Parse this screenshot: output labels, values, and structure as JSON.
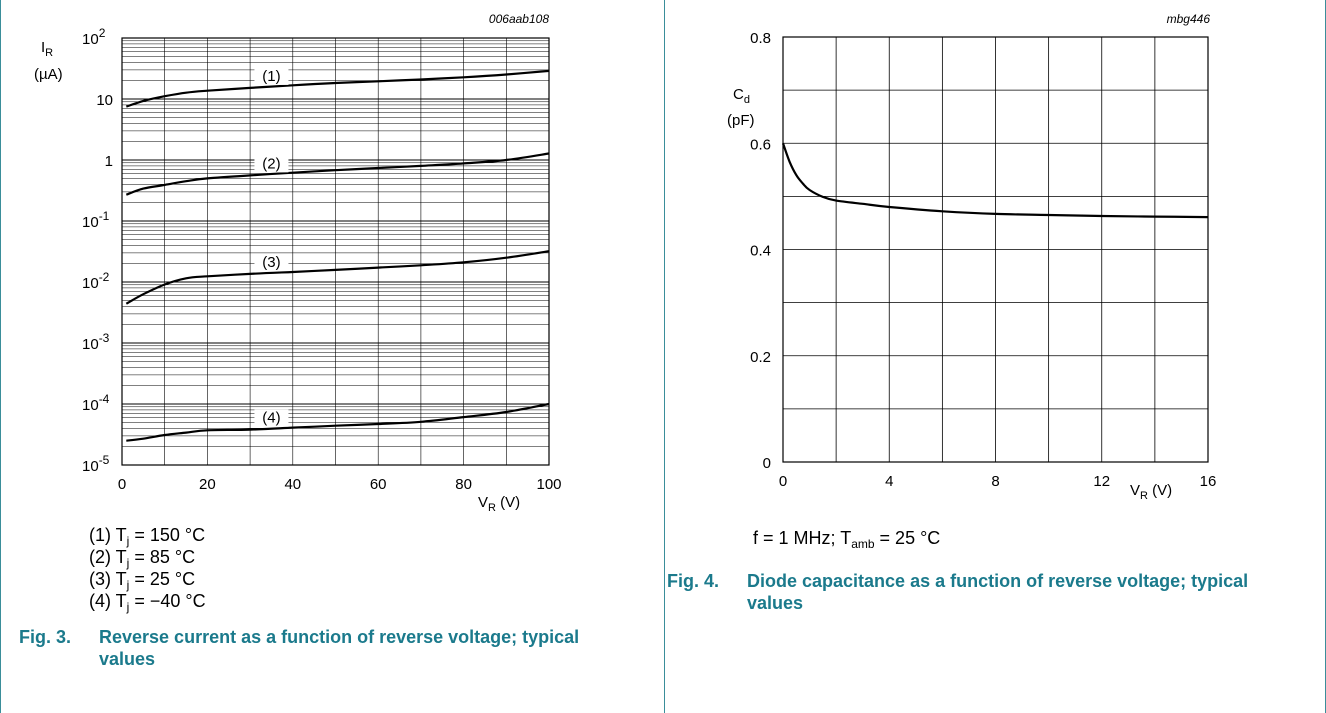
{
  "left": {
    "fig_id": "006aab108",
    "chart_data": {
      "type": "line",
      "x_label": "VR (V)",
      "y_label": "IR (µA)",
      "y_scale": "log",
      "xlim": [
        0,
        100
      ],
      "ylim": [
        1e-05,
        100
      ],
      "x_ticks": [
        "0",
        "20",
        "40",
        "60",
        "80",
        "100"
      ],
      "y_ticks": [
        "10^2",
        "10",
        "1",
        "10^-1",
        "10^-2",
        "10^-3",
        "10^-4",
        "10^-5"
      ],
      "grid": true,
      "series": [
        {
          "name": "(1)",
          "x": [
            1,
            5,
            10,
            15,
            20,
            30,
            40,
            50,
            60,
            70,
            80,
            90,
            100
          ],
          "y": [
            7.5,
            9.3,
            11.1,
            12.7,
            13.7,
            15.2,
            16.8,
            18.3,
            19.5,
            20.9,
            22.7,
            25.2,
            28.9
          ]
        },
        {
          "name": "(2)",
          "x": [
            1,
            5,
            10,
            15,
            20,
            30,
            40,
            50,
            60,
            70,
            80,
            90,
            100
          ],
          "y": [
            0.27,
            0.34,
            0.39,
            0.45,
            0.5,
            0.56,
            0.62,
            0.68,
            0.74,
            0.8,
            0.88,
            1.0,
            1.28
          ]
        },
        {
          "name": "(3)",
          "x": [
            1,
            5,
            10,
            15,
            20,
            30,
            40,
            50,
            60,
            70,
            80,
            90,
            100
          ],
          "y": [
            0.0044,
            0.0063,
            0.0091,
            0.0115,
            0.0124,
            0.0136,
            0.0146,
            0.0158,
            0.0172,
            0.0188,
            0.021,
            0.025,
            0.032
          ]
        },
        {
          "name": "(4)",
          "x": [
            1,
            5,
            10,
            15,
            20,
            30,
            40,
            50,
            60,
            70,
            80,
            90,
            100
          ],
          "y": [
            2.5e-05,
            2.7e-05,
            3.1e-05,
            3.4e-05,
            3.7e-05,
            3.8e-05,
            4.1e-05,
            4.4e-05,
            4.7e-05,
            5.1e-05,
            6.1e-05,
            7.4e-05,
            0.0001
          ]
        }
      ]
    },
    "legend": [
      {
        "prefix": "(1) T",
        "sub": "j",
        "suffix": " = 150 °C"
      },
      {
        "prefix": "(2) T",
        "sub": "j",
        "suffix": " = 85 °C"
      },
      {
        "prefix": "(3) T",
        "sub": "j",
        "suffix": " = 25 °C"
      },
      {
        "prefix": "(4) T",
        "sub": "j",
        "suffix": " = −40 °C"
      }
    ],
    "caption_num": "Fig. 3.",
    "caption_text": "Reverse current as a function of reverse voltage; typical values"
  },
  "right": {
    "fig_id": "mbg446",
    "chart_data": {
      "type": "line",
      "x_label": "VR (V)",
      "y_label": "Cd (pF)",
      "xlim": [
        0,
        16
      ],
      "ylim": [
        0,
        0.8
      ],
      "x_ticks": [
        "0",
        "4",
        "8",
        "12",
        "16"
      ],
      "y_ticks": [
        "0",
        "0.2",
        "0.4",
        "0.6",
        "0.8"
      ],
      "grid": true,
      "series": [
        {
          "x": [
            0,
            0.25,
            0.5,
            0.75,
            1,
            1.5,
            2,
            3,
            4,
            6,
            8,
            10,
            12,
            14,
            16
          ],
          "y": [
            0.6,
            0.565,
            0.54,
            0.524,
            0.512,
            0.499,
            0.492,
            0.486,
            0.48,
            0.472,
            0.467,
            0.465,
            0.463,
            0.462,
            0.461
          ]
        }
      ]
    },
    "cond": {
      "a": "f = 1 MHz; T",
      "sub": "amb",
      "b": " = 25 °C"
    },
    "caption_num": "Fig. 4.",
    "caption_text": "Diode capacitance as a function of reverse voltage; typical values"
  }
}
